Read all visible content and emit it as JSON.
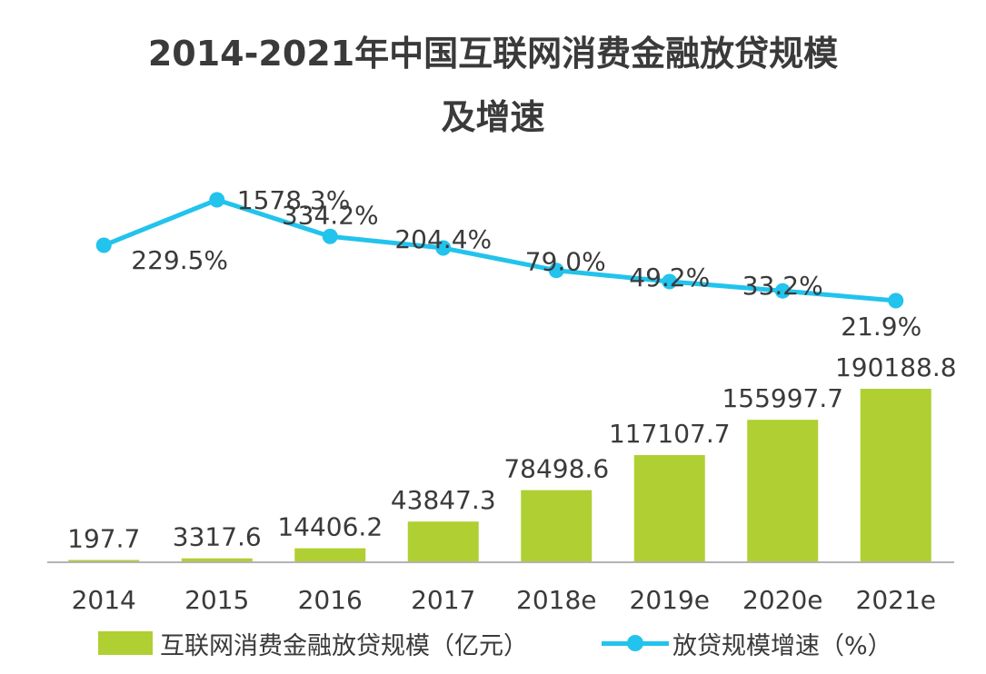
{
  "colors": {
    "bar": "#b0cf33",
    "line": "#22c3ec",
    "axis": "#9a9a9a",
    "text": "#3a3a3a"
  },
  "chart_data": {
    "type": "bar",
    "title_lines": [
      "2014-2021年中国互联网消费金融放贷规模",
      "及增速"
    ],
    "categories": [
      "2014",
      "2015",
      "2016",
      "2017",
      "2018e",
      "2019e",
      "2020e",
      "2021e"
    ],
    "series": [
      {
        "name": "互联网消费金融放贷规模（亿元）",
        "type": "bar",
        "values": [
          197.7,
          3317.6,
          14406.2,
          43847.3,
          78498.6,
          117107.7,
          155997.7,
          190188.8
        ],
        "labels": [
          "197.7",
          "3317.6",
          "14406.2",
          "43847.3",
          "78498.6",
          "117107.7",
          "155997.7",
          "190188.8"
        ]
      },
      {
        "name": "放贷规模增速（%）",
        "type": "line",
        "values": [
          229.5,
          1578.3,
          334.2,
          204.4,
          79.0,
          49.2,
          33.2,
          21.9
        ],
        "labels": [
          "229.5%",
          "1578.3%",
          "334.2%",
          "204.4%",
          "79.0%",
          "49.2%",
          "33.2%",
          "21.9%"
        ]
      }
    ],
    "grid": false,
    "legend_position": "bottom"
  }
}
